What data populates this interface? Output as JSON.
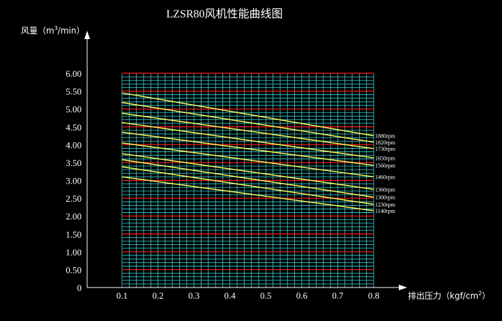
{
  "chart_data": {
    "type": "line",
    "title": "LZSR80风机性能曲线图",
    "ylabel_prefix": "风量（m",
    "ylabel_sup": "3",
    "ylabel_suffix": "/min）",
    "xlabel_prefix": "排出压力（kgf/cm",
    "xlabel_sup": "2",
    "xlabel_suffix": "）",
    "xlim": [
      0.1,
      0.8
    ],
    "ylim": [
      0,
      6.0
    ],
    "x_ticks": [
      "0.1",
      "0.2",
      "0.3",
      "0.4",
      "0.5",
      "0.6",
      "0.7",
      "0.8"
    ],
    "y_ticks": [
      "0",
      "0.50",
      "1.00",
      "1.50",
      "2.00",
      "2.50",
      "3.00",
      "3.50",
      "4.00",
      "4.50",
      "5.00",
      "5.50",
      "6.00"
    ],
    "grid": true,
    "colors": {
      "background": "#000000",
      "grid_major": "#ff1a1a",
      "grid_minor": "#3ad6d6",
      "curve": "#f2f05a",
      "axis": "#ffffff",
      "text": "#ffffff"
    },
    "series": [
      {
        "name": "1880rpm",
        "x": [
          0.1,
          0.8
        ],
        "y": [
          5.45,
          4.25
        ]
      },
      {
        "name": "1820rpm",
        "x": [
          0.1,
          0.8
        ],
        "y": [
          5.18,
          4.07
        ]
      },
      {
        "name": "1730rpm",
        "x": [
          0.1,
          0.8
        ],
        "y": [
          4.88,
          3.89
        ]
      },
      {
        "name": "1650rpm",
        "x": [
          0.1,
          0.8
        ],
        "y": [
          4.62,
          3.63
        ]
      },
      {
        "name": "1560rpm",
        "x": [
          0.1,
          0.8
        ],
        "y": [
          4.35,
          3.42
        ]
      },
      {
        "name": "1460rpm",
        "x": [
          0.1,
          0.8
        ],
        "y": [
          4.05,
          3.1
        ]
      },
      {
        "name": "1360rpm",
        "x": [
          0.1,
          0.8
        ],
        "y": [
          3.75,
          2.75
        ]
      },
      {
        "name": "1300rpm",
        "x": [
          0.1,
          0.8
        ],
        "y": [
          3.58,
          2.53
        ]
      },
      {
        "name": "1230rpm",
        "x": [
          0.1,
          0.8
        ],
        "y": [
          3.38,
          2.33
        ]
      },
      {
        "name": "1140rpm",
        "x": [
          0.1,
          0.8
        ],
        "y": [
          3.1,
          2.15
        ]
      }
    ]
  }
}
